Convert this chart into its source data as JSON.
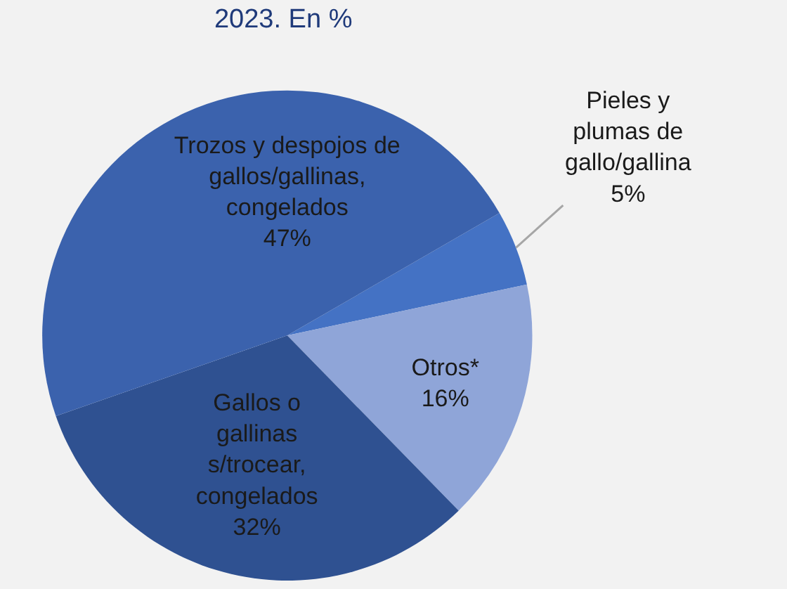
{
  "chart_data": {
    "type": "pie",
    "title": "2023. En %",
    "categories": [
      "Pieles y plumas de gallo/gallina",
      "Otros*",
      "Gallos o gallinas s/trocear, congelados",
      "Trozos y despojos de gallos/gallinas, congelados"
    ],
    "values": [
      5,
      16,
      32,
      47
    ],
    "value_labels": [
      "5%",
      "16%",
      "32%",
      "47%"
    ],
    "colors": [
      "#4472c4",
      "#8fa5d8",
      "#2f5191",
      "#3b62ad"
    ],
    "legend": false
  }
}
